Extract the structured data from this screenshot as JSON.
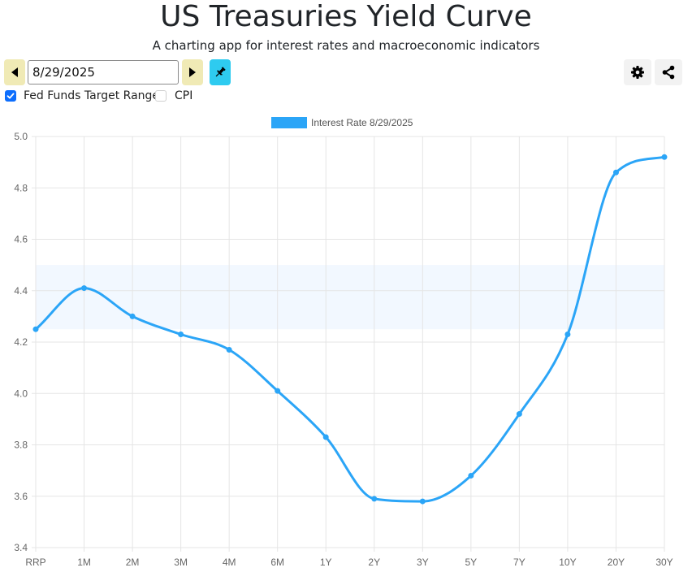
{
  "header": {
    "title": "US Treasuries Yield Curve",
    "subtitle": "A charting app for interest rates and macroeconomic indicators"
  },
  "toolbar": {
    "date_value": "8/29/2025",
    "prev_icon": "caret-left-icon",
    "next_icon": "caret-right-icon",
    "pin_icon": "pin-icon",
    "settings_icon": "gear-icon",
    "share_icon": "share-icon"
  },
  "options": {
    "fed_funds": {
      "label": "Fed Funds Target Range",
      "checked": true
    },
    "cpi": {
      "label": "CPI",
      "checked": false
    }
  },
  "colors": {
    "series": "#2ba5f7",
    "band": "#f2f8ff",
    "nav_button": "#f0eab5",
    "pin_button": "#2ecbf0",
    "checkbox": "#0d6efd"
  },
  "chart_data": {
    "type": "line",
    "categories": [
      "RRP",
      "1M",
      "2M",
      "3M",
      "4M",
      "6M",
      "1Y",
      "2Y",
      "3Y",
      "5Y",
      "7Y",
      "10Y",
      "20Y",
      "30Y"
    ],
    "series": [
      {
        "name": "Interest Rate 8/29/2025",
        "values": [
          4.25,
          4.41,
          4.3,
          4.23,
          4.17,
          4.01,
          3.83,
          3.59,
          3.58,
          3.68,
          3.92,
          4.23,
          4.86,
          4.92
        ]
      }
    ],
    "yticks": [
      "5.0",
      "4.8",
      "4.6",
      "4.4",
      "4.2",
      "4.0",
      "3.8",
      "3.6",
      "3.4"
    ],
    "ylim": [
      3.4,
      5.0
    ],
    "band": {
      "from": 4.25,
      "to": 4.5
    },
    "grid": true,
    "legend_position": "top-center"
  }
}
